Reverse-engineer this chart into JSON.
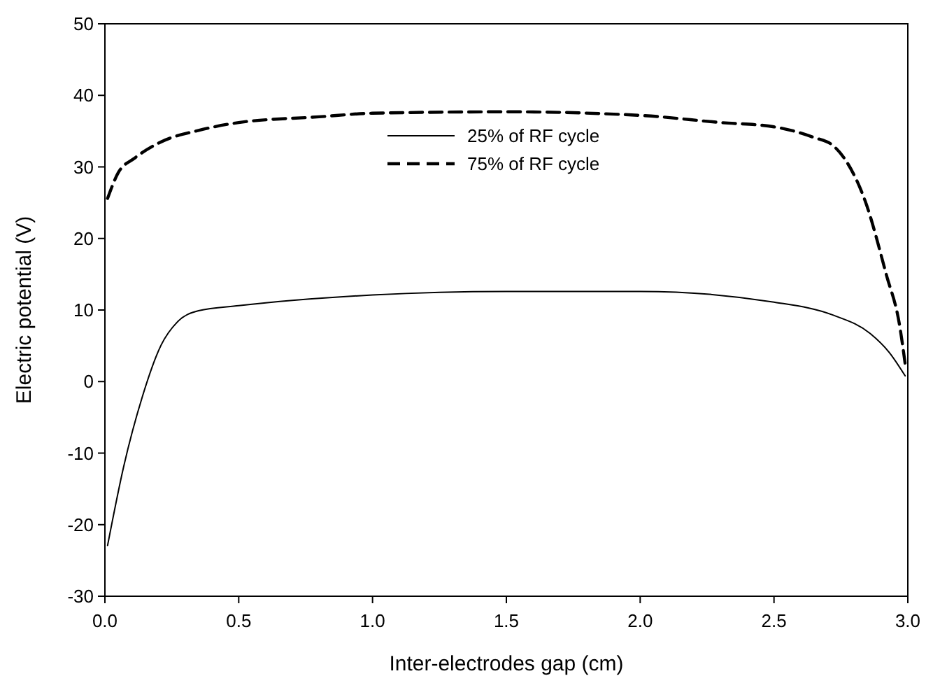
{
  "chart_data": {
    "type": "line",
    "xlabel": "Inter-electrodes gap (cm)",
    "ylabel": "Electric potential (V)",
    "xlim": [
      0,
      3
    ],
    "xticks": [
      {
        "value": 0,
        "label": "0.0"
      },
      {
        "value": 0.5,
        "label": "0.5"
      },
      {
        "value": 1,
        "label": "1.0"
      },
      {
        "value": 1.5,
        "label": "1.5"
      },
      {
        "value": 2,
        "label": "2.0"
      },
      {
        "value": 2.5,
        "label": "2.5"
      },
      {
        "value": 3,
        "label": "3.0"
      }
    ],
    "ylim": [
      -30,
      50
    ],
    "yticks": [
      -30,
      -20,
      -10,
      0,
      10,
      20,
      30,
      40,
      50
    ],
    "grid": false,
    "legend": "top",
    "series": [
      {
        "name": "25% of RF cycle",
        "color": "#000000",
        "line_style": "solid",
        "x": [
          0.01,
          0.07,
          0.14,
          0.21,
          0.27,
          0.35,
          0.5,
          1.0,
          1.5,
          2.0,
          2.5,
          2.72,
          2.86,
          2.93,
          2.99
        ],
        "values": [
          -22.9,
          -11.9,
          -2.1,
          5.1,
          8.3,
          9.9,
          10.6,
          12.1,
          12.6,
          12.6,
          11.1,
          9.3,
          6.7,
          4.1,
          0.8
        ]
      },
      {
        "name": "75% of RF cycle",
        "color": "#000000",
        "line_style": "dashed",
        "x": [
          0.01,
          0.05,
          0.11,
          0.21,
          0.35,
          0.5,
          0.8,
          1.0,
          1.5,
          2.0,
          2.3,
          2.5,
          2.65,
          2.72,
          2.77,
          2.84,
          2.92,
          2.97,
          2.99
        ],
        "values": [
          25.6,
          29.2,
          31.2,
          33.5,
          35.1,
          36.2,
          37.0,
          37.5,
          37.7,
          37.2,
          36.2,
          35.6,
          34.1,
          33.0,
          30.8,
          25.3,
          14.9,
          7.7,
          2.5
        ]
      }
    ]
  }
}
